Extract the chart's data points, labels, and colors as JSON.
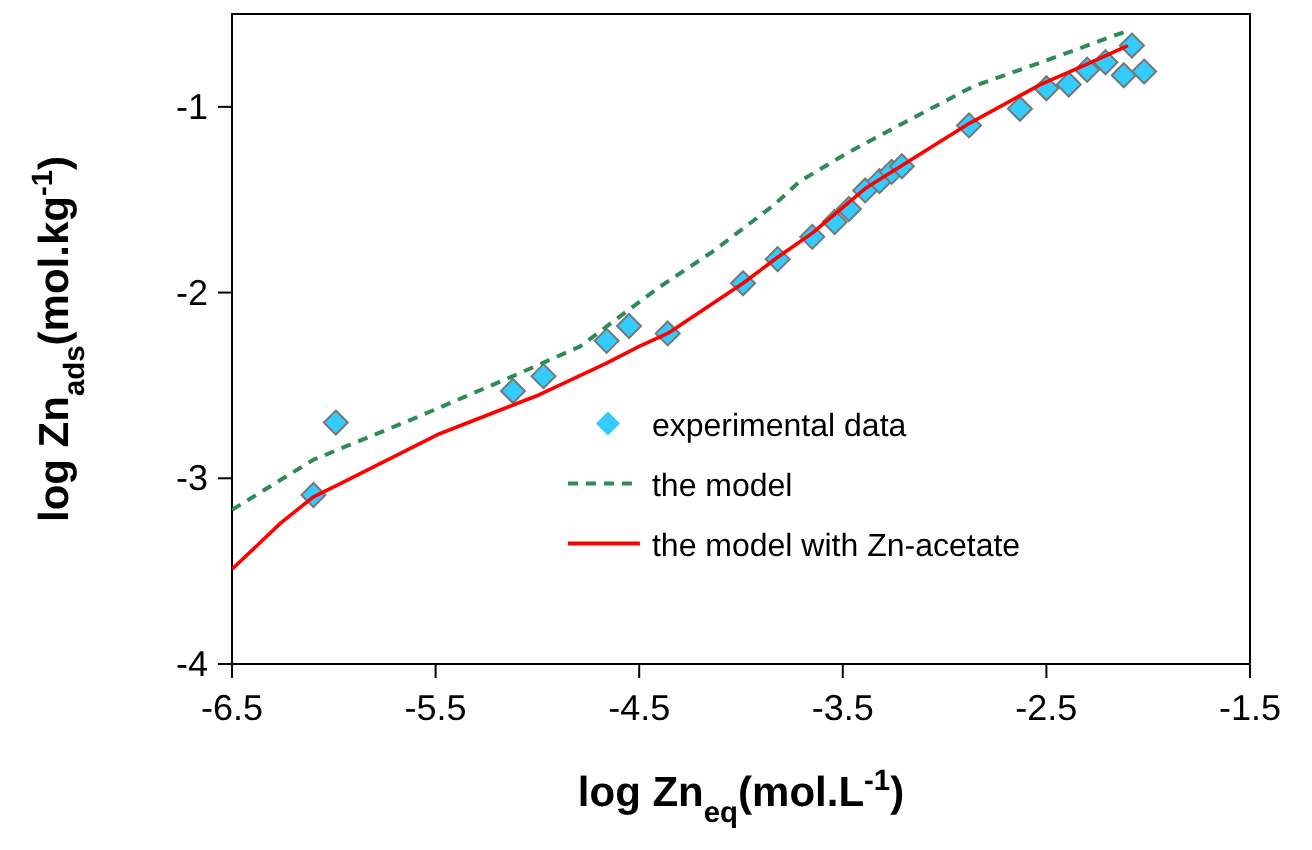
{
  "chart_data": {
    "type": "scatter",
    "xlabel": "log Zn$_{eq}$(mol.L$^{-1}$)",
    "ylabel": "log Zn$_{ads}$(mol.kg$^{-1}$)",
    "xlim": [
      -6.5,
      -1.5
    ],
    "ylim": [
      -4,
      -0.5
    ],
    "xticks": [
      -6.5,
      -5.5,
      -4.5,
      -3.5,
      -2.5,
      -1.5
    ],
    "yticks": [
      -4,
      -3,
      -2,
      -1
    ],
    "grid": false,
    "legend": "bottom",
    "series": [
      {
        "name": "experimental data",
        "marker": "diamond",
        "color": "#33ccff",
        "x": [
          -6.1,
          -5.99,
          -5.12,
          -4.97,
          -4.66,
          -4.55,
          -4.36,
          -3.99,
          -3.82,
          -3.65,
          -3.54,
          -3.47,
          -3.39,
          -3.32,
          -3.26,
          -3.21,
          -2.88,
          -2.63,
          -2.5,
          -2.39,
          -2.3,
          -2.21,
          -2.12,
          -2.08,
          -2.02
        ],
        "values": [
          -3.09,
          -2.7,
          -2.53,
          -2.45,
          -2.26,
          -2.18,
          -2.22,
          -1.95,
          -1.82,
          -1.7,
          -1.62,
          -1.55,
          -1.45,
          -1.4,
          -1.35,
          -1.32,
          -1.1,
          -1.01,
          -0.9,
          -0.88,
          -0.8,
          -0.76,
          -0.83,
          -0.67,
          -0.81
        ]
      },
      {
        "name": "the model",
        "type": "line",
        "line_style": "dashed",
        "color": "#2e8b57",
        "x": [
          -6.5,
          -6.1,
          -5.61,
          -5.12,
          -4.79,
          -4.56,
          -4.4,
          -4.14,
          -3.84,
          -3.71,
          -3.48,
          -3.19,
          -2.86,
          -2.5,
          -2.1
        ],
        "values": [
          -3.17,
          -2.9,
          -2.68,
          -2.45,
          -2.29,
          -2.1,
          -1.97,
          -1.78,
          -1.53,
          -1.4,
          -1.25,
          -1.08,
          -0.89,
          -0.75,
          -0.59
        ]
      },
      {
        "name": "the model with Zn-acetate",
        "type": "line",
        "line_style": "solid",
        "color": "#ff0000",
        "x": [
          -6.5,
          -6.26,
          -6.1,
          -5.97,
          -5.48,
          -4.99,
          -4.66,
          -4.5,
          -4.36,
          -3.99,
          -3.82,
          -3.65,
          -3.39,
          -2.88,
          -2.53,
          -2.3,
          -2.1
        ],
        "values": [
          -3.49,
          -3.24,
          -3.1,
          -3.03,
          -2.76,
          -2.55,
          -2.38,
          -2.29,
          -2.22,
          -1.95,
          -1.81,
          -1.68,
          -1.44,
          -1.09,
          -0.88,
          -0.77,
          -0.67
        ]
      }
    ]
  }
}
